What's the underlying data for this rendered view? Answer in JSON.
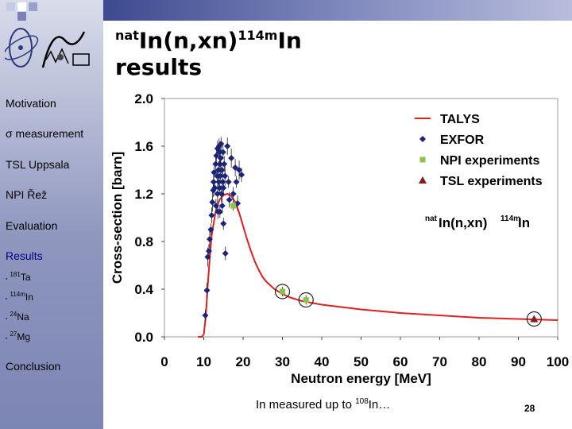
{
  "slide": {
    "title_main": "In(n,xn)",
    "title_pre": "nat",
    "title_iso": "114m",
    "title_post": "In",
    "title_line2": "results",
    "note_prefix": "In measured up to ",
    "note_iso": "108",
    "note_suffix": "In…",
    "page_number": "28"
  },
  "sidebar": {
    "nav": [
      "Motivation",
      "σ measurement",
      "TSL Uppsala",
      "NPI Řež",
      "Evaluation",
      "Results",
      "Conclusion"
    ],
    "sub": [
      {
        "iso": "181",
        "el": "Ta"
      },
      {
        "iso": "114m",
        "el": "In"
      },
      {
        "iso": "24",
        "el": "Na"
      },
      {
        "iso": "27",
        "el": "Mg"
      }
    ],
    "bullet": "▪"
  },
  "chart_data": {
    "type": "scatter",
    "title": "",
    "xlabel": "Neutron energy [MeV]",
    "ylabel": "Cross-section [barn]",
    "xlim": [
      0,
      100
    ],
    "ylim": [
      0,
      2.0
    ],
    "xticks": [
      0,
      10,
      20,
      30,
      40,
      50,
      60,
      70,
      80,
      90,
      100
    ],
    "yticks": [
      0.0,
      0.4,
      0.8,
      1.2,
      1.6,
      2.0
    ],
    "annotation": {
      "pre": "nat",
      "main": "In(n,xn)",
      "iso": "114m",
      "post": "In"
    },
    "legend": [
      "TALYS",
      "EXFOR",
      "NPI experiments",
      "TSL experiments"
    ],
    "series": [
      {
        "name": "TALYS",
        "kind": "line",
        "color": "#e02020",
        "x": [
          8.5,
          9.5,
          10.0,
          10.5,
          11.0,
          11.5,
          12.0,
          13.0,
          14.0,
          15.0,
          16.0,
          17.0,
          18.0,
          19.0,
          20.0,
          21.0,
          22.0,
          23.0,
          24.0,
          25.0,
          26.0,
          28.0,
          30.0,
          32.0,
          35.0,
          40.0,
          45.0,
          50.0,
          60.0,
          70.0,
          80.0,
          90.0,
          100.0
        ],
        "y": [
          0.0,
          0.0,
          0.02,
          0.17,
          0.42,
          0.65,
          0.85,
          1.05,
          1.15,
          1.19,
          1.2,
          1.18,
          1.13,
          1.04,
          0.93,
          0.82,
          0.72,
          0.63,
          0.56,
          0.5,
          0.46,
          0.4,
          0.36,
          0.33,
          0.3,
          0.27,
          0.25,
          0.23,
          0.2,
          0.18,
          0.16,
          0.15,
          0.14
        ]
      },
      {
        "name": "EXFOR",
        "kind": "points",
        "color": "#1a237e",
        "x": [
          10.4,
          10.8,
          11.0,
          11.3,
          11.5,
          11.8,
          12.0,
          12.2,
          12.4,
          12.5,
          12.6,
          12.8,
          13.0,
          13.1,
          13.2,
          13.4,
          13.5,
          13.5,
          13.6,
          13.7,
          13.8,
          13.9,
          14.0,
          14.0,
          14.1,
          14.1,
          14.2,
          14.3,
          14.4,
          14.5,
          14.6,
          14.7,
          14.8,
          14.9,
          15.0,
          15.0,
          15.2,
          15.4,
          15.5,
          16.0,
          16.3,
          16.5,
          17.0,
          17.5,
          18.0,
          18.3,
          18.6,
          19.0,
          19.6
        ],
        "y": [
          0.18,
          0.39,
          0.67,
          0.72,
          0.82,
          0.9,
          1.02,
          1.13,
          1.23,
          1.3,
          1.38,
          1.25,
          1.45,
          1.1,
          1.52,
          1.35,
          1.58,
          1.2,
          1.05,
          1.4,
          1.3,
          1.6,
          1.55,
          1.25,
          1.45,
          1.05,
          1.35,
          1.5,
          1.62,
          1.2,
          1.4,
          1.1,
          1.3,
          1.55,
          1.25,
          0.95,
          1.45,
          1.35,
          0.7,
          1.6,
          1.3,
          1.15,
          1.5,
          1.2,
          1.42,
          1.3,
          1.12,
          1.4,
          1.36
        ]
      },
      {
        "name": "NPI experiments",
        "kind": "points",
        "color": "#8bc34a",
        "x": [
          17.5,
          30.0,
          36.0
        ],
        "y": [
          1.1,
          0.38,
          0.31
        ]
      },
      {
        "name": "TSL experiments",
        "kind": "points",
        "color": "#8b1a1a",
        "x": [
          94.0
        ],
        "y": [
          0.15
        ]
      }
    ]
  }
}
